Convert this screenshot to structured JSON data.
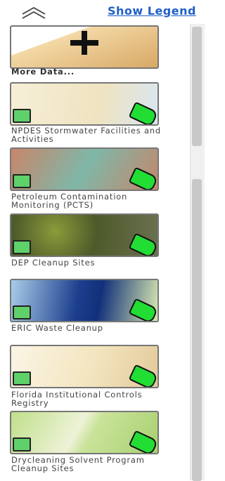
{
  "header": {
    "legend_link": "Show Legend"
  },
  "layers": [
    {
      "label": "More Data..."
    },
    {
      "label": "NPDES Stormwater Facilities and Activities"
    },
    {
      "label": "Petroleum Contamination Monitoring (PCTS)"
    },
    {
      "label": "DEP Cleanup Sites"
    },
    {
      "label": "ERIC Waste Cleanup"
    },
    {
      "label": "Florida Institutional Controls Registry"
    },
    {
      "label": "Drycleaning Solvent Program Cleanup Sites"
    }
  ]
}
